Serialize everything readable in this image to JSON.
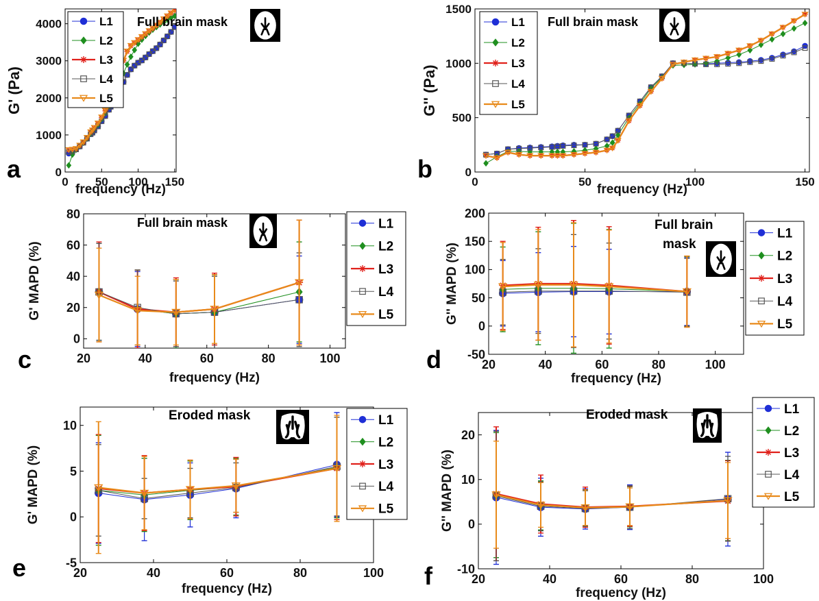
{
  "legend_labels": [
    "L1",
    "L2",
    "L3",
    "L4",
    "L5"
  ],
  "series_colors": {
    "L1": "#1f2fd6",
    "L2": "#1f8f1f",
    "L3": "#e0201a",
    "L4": "#555555",
    "L5": "#e88a1a"
  },
  "chart_data": [
    {
      "panel": "a",
      "type": "line",
      "ylabel": "G' (Pa)",
      "xlabel": "frequency (Hz)",
      "annotation": "Full brain mask",
      "xlim": [
        0,
        152
      ],
      "ylim": [
        0,
        4400
      ],
      "xticks": [
        0,
        50,
        100,
        150
      ],
      "yticks": [
        0,
        1000,
        2000,
        3000,
        4000
      ],
      "legend": "top-left",
      "x": [
        5,
        10,
        15,
        20,
        25,
        30,
        35,
        37.5,
        40,
        45,
        50,
        55,
        60,
        62.5,
        65,
        70,
        75,
        80,
        85,
        90,
        95,
        100,
        105,
        110,
        115,
        120,
        125,
        130,
        135,
        140,
        145,
        150
      ],
      "series": [
        {
          "name": "L1",
          "values": [
            500,
            560,
            610,
            690,
            790,
            900,
            1020,
            1060,
            1120,
            1230,
            1370,
            1510,
            1680,
            1760,
            1860,
            2100,
            2280,
            2430,
            2620,
            2770,
            2870,
            2950,
            3010,
            3090,
            3180,
            3260,
            3340,
            3440,
            3550,
            3660,
            3780,
            3910
          ]
        },
        {
          "name": "L2",
          "values": [
            180,
            470,
            600,
            700,
            790,
            900,
            1030,
            1080,
            1150,
            1270,
            1420,
            1580,
            1750,
            1840,
            1940,
            2200,
            2440,
            2660,
            2900,
            3110,
            3290,
            3460,
            3570,
            3670,
            3760,
            3840,
            3910,
            3980,
            4040,
            4110,
            4160,
            4210
          ]
        },
        {
          "name": "L3",
          "values": [
            590,
            600,
            620,
            710,
            800,
            920,
            1070,
            1120,
            1190,
            1310,
            1470,
            1650,
            1840,
            1920,
            2030,
            2360,
            2700,
            3000,
            3250,
            3400,
            3480,
            3560,
            3640,
            3720,
            3800,
            3870,
            3950,
            4030,
            4120,
            4200,
            4280,
            4360
          ]
        },
        {
          "name": "L4",
          "values": [
            540,
            560,
            610,
            690,
            790,
            900,
            1020,
            1060,
            1120,
            1230,
            1370,
            1510,
            1680,
            1760,
            1860,
            2100,
            2280,
            2430,
            2620,
            2770,
            2870,
            2950,
            3010,
            3090,
            3180,
            3260,
            3340,
            3440,
            3550,
            3660,
            3780,
            3910
          ]
        },
        {
          "name": "L5",
          "values": [
            600,
            610,
            630,
            720,
            810,
            930,
            1080,
            1130,
            1200,
            1320,
            1480,
            1660,
            1850,
            1930,
            2040,
            2370,
            2710,
            3010,
            3260,
            3410,
            3490,
            3570,
            3650,
            3730,
            3810,
            3880,
            3960,
            4040,
            4130,
            4210,
            4290,
            4370
          ]
        }
      ]
    },
    {
      "panel": "b",
      "type": "line",
      "ylabel": "G'' (Pa)",
      "xlabel": "frequency (Hz)",
      "annotation": "Full brain mask",
      "xlim": [
        0,
        152
      ],
      "ylim": [
        0,
        1500
      ],
      "xticks": [
        0,
        50,
        100,
        150
      ],
      "yticks": [
        0,
        500,
        1000,
        1500
      ],
      "legend": "top-left",
      "x": [
        5,
        10,
        15,
        20,
        25,
        30,
        35,
        37.5,
        40,
        45,
        50,
        55,
        60,
        62.5,
        65,
        70,
        75,
        80,
        85,
        90,
        95,
        100,
        105,
        110,
        115,
        120,
        125,
        130,
        135,
        140,
        145,
        150
      ],
      "series": [
        {
          "name": "L1",
          "values": [
            160,
            170,
            210,
            220,
            225,
            230,
            235,
            240,
            245,
            250,
            250,
            260,
            300,
            330,
            380,
            520,
            650,
            780,
            880,
            1000,
            1000,
            995,
            995,
            1000,
            1005,
            1010,
            1020,
            1030,
            1050,
            1080,
            1110,
            1160
          ]
        },
        {
          "name": "L2",
          "values": [
            80,
            140,
            190,
            190,
            185,
            185,
            185,
            185,
            185,
            190,
            200,
            215,
            240,
            270,
            340,
            500,
            630,
            770,
            870,
            980,
            985,
            990,
            1000,
            1020,
            1050,
            1080,
            1120,
            1170,
            1220,
            1270,
            1320,
            1370
          ]
        },
        {
          "name": "L3",
          "values": [
            150,
            130,
            180,
            160,
            150,
            150,
            150,
            150,
            150,
            160,
            170,
            180,
            200,
            220,
            290,
            470,
            610,
            740,
            860,
            990,
            1010,
            1030,
            1045,
            1060,
            1090,
            1120,
            1160,
            1210,
            1270,
            1330,
            1390,
            1450
          ]
        },
        {
          "name": "L4",
          "values": [
            160,
            170,
            210,
            215,
            220,
            225,
            230,
            235,
            240,
            245,
            250,
            260,
            300,
            330,
            380,
            520,
            650,
            780,
            880,
            1000,
            1000,
            995,
            990,
            990,
            995,
            1000,
            1010,
            1020,
            1040,
            1070,
            1100,
            1140
          ]
        },
        {
          "name": "L5",
          "values": [
            150,
            130,
            180,
            160,
            150,
            150,
            150,
            150,
            150,
            160,
            170,
            180,
            200,
            220,
            290,
            470,
            610,
            740,
            860,
            990,
            1010,
            1030,
            1045,
            1060,
            1090,
            1120,
            1160,
            1210,
            1270,
            1330,
            1390,
            1450
          ]
        }
      ]
    },
    {
      "panel": "c",
      "type": "line",
      "ylabel": "G' MAPD (%)",
      "xlabel": "frequency (Hz)",
      "annotation": "Full brain mask",
      "xlim": [
        20,
        105
      ],
      "ylim": [
        -6,
        80
      ],
      "xticks": [
        20,
        40,
        60,
        80,
        100
      ],
      "yticks": [
        0,
        20,
        40,
        60,
        80
      ],
      "legend": "outside-right",
      "x": [
        25,
        37.5,
        50,
        62.5,
        90
      ],
      "series": [
        {
          "name": "L1",
          "values": [
            30,
            19,
            16,
            17,
            25
          ],
          "errors": [
            31,
            24,
            22,
            24,
            28
          ]
        },
        {
          "name": "L2",
          "values": [
            30,
            19,
            16,
            17,
            30
          ],
          "errors": [
            31,
            25,
            22,
            24,
            32
          ]
        },
        {
          "name": "L3",
          "values": [
            30,
            19,
            17,
            19,
            36
          ],
          "errors": [
            32,
            25,
            22,
            23,
            40
          ]
        },
        {
          "name": "L4",
          "values": [
            30,
            20,
            16,
            17,
            25
          ],
          "errors": [
            31,
            24,
            21,
            23,
            30
          ]
        },
        {
          "name": "L5",
          "values": [
            28,
            18,
            17,
            19,
            36
          ],
          "errors": [
            30,
            22,
            21,
            22,
            40
          ]
        }
      ]
    },
    {
      "panel": "d",
      "type": "line",
      "ylabel": "G'' MAPD (%)",
      "xlabel": "frequency (Hz)",
      "annotation_lines": [
        "Full brain",
        "mask"
      ],
      "xlim": [
        20,
        110
      ],
      "ylim": [
        -50,
        200
      ],
      "xticks": [
        20,
        40,
        60,
        80,
        100
      ],
      "yticks": [
        -50,
        0,
        50,
        100,
        150,
        200
      ],
      "legend": "outside-right",
      "x": [
        25,
        37.5,
        50,
        62.5,
        90
      ],
      "series": [
        {
          "name": "L1",
          "values": [
            58,
            60,
            61,
            61,
            61
          ],
          "errors": [
            58,
            70,
            80,
            75,
            60
          ]
        },
        {
          "name": "L2",
          "values": [
            65,
            67,
            67,
            66,
            61
          ],
          "errors": [
            75,
            100,
            115,
            105,
            62
          ]
        },
        {
          "name": "L3",
          "values": [
            72,
            75,
            75,
            72,
            61
          ],
          "errors": [
            78,
            100,
            112,
            104,
            63
          ]
        },
        {
          "name": "L4",
          "values": [
            60,
            62,
            62,
            62,
            60
          ],
          "errors": [
            58,
            75,
            100,
            85,
            60
          ]
        },
        {
          "name": "L5",
          "values": [
            70,
            73,
            73,
            70,
            61
          ],
          "errors": [
            78,
            98,
            110,
            100,
            63
          ]
        }
      ]
    },
    {
      "panel": "e",
      "type": "line",
      "ylabel": "G' MAPD (%)",
      "xlabel": "frequency (Hz)",
      "annotation": "Eroded mask",
      "xlim": [
        20,
        100
      ],
      "ylim": [
        -5,
        12
      ],
      "xticks": [
        20,
        40,
        60,
        80,
        100
      ],
      "yticks": [
        -5,
        0,
        5,
        10
      ],
      "legend": "top-right",
      "x": [
        25,
        37.5,
        50,
        62.5,
        90
      ],
      "series": [
        {
          "name": "L1",
          "values": [
            2.6,
            1.9,
            2.4,
            3.1,
            5.7
          ],
          "errors": [
            5.5,
            4.5,
            3.5,
            3.2,
            5.7
          ]
        },
        {
          "name": "L2",
          "values": [
            2.9,
            2.4,
            2.9,
            3.3,
            5.4
          ],
          "errors": [
            6,
            4,
            3.2,
            3.1,
            5.5
          ]
        },
        {
          "name": "L3",
          "values": [
            3.1,
            2.6,
            3.0,
            3.3,
            5.3
          ],
          "errors": [
            5.9,
            4.1,
            3.2,
            3.2,
            5.6
          ]
        },
        {
          "name": "L4",
          "values": [
            2.9,
            2.0,
            2.6,
            3.2,
            5.5
          ],
          "errors": [
            5,
            2.2,
            2.7,
            2.7,
            5.4
          ]
        },
        {
          "name": "L5",
          "values": [
            3.2,
            2.6,
            3.0,
            3.4,
            5.3
          ],
          "errors": [
            7.2,
            4.0,
            3.2,
            2.9,
            5.8
          ]
        }
      ]
    },
    {
      "panel": "f",
      "type": "line",
      "ylabel": "G'' MAPD (%)",
      "xlabel": "frequency (Hz)",
      "annotation": "Eroded mask",
      "xlim": [
        20,
        100
      ],
      "ylim": [
        -10,
        25
      ],
      "xticks": [
        20,
        40,
        60,
        80,
        100
      ],
      "yticks": [
        -10,
        0,
        10,
        20
      ],
      "legend": "top-right",
      "x": [
        25,
        37.5,
        50,
        62.5,
        90
      ],
      "series": [
        {
          "name": "L1",
          "values": [
            6.0,
            3.8,
            3.4,
            3.8,
            5.6
          ],
          "errors": [
            15,
            6.5,
            4.5,
            5,
            10.5
          ]
        },
        {
          "name": "L2",
          "values": [
            6.5,
            4.2,
            3.7,
            3.9,
            5.3
          ],
          "errors": [
            14,
            5.5,
            4,
            4.5,
            9
          ]
        },
        {
          "name": "L3",
          "values": [
            6.8,
            4.5,
            3.8,
            4.0,
            5.2
          ],
          "errors": [
            15,
            6.5,
            4.5,
            4.5,
            9
          ]
        },
        {
          "name": "L4",
          "values": [
            6.3,
            4.0,
            3.5,
            3.8,
            5.7
          ],
          "errors": [
            14.5,
            5.5,
            4,
            4.8,
            9.5
          ]
        },
        {
          "name": "L5",
          "values": [
            6.6,
            4.3,
            3.7,
            3.9,
            5.3
          ],
          "errors": [
            12,
            5,
            4,
            4.2,
            8.5
          ]
        }
      ]
    }
  ]
}
